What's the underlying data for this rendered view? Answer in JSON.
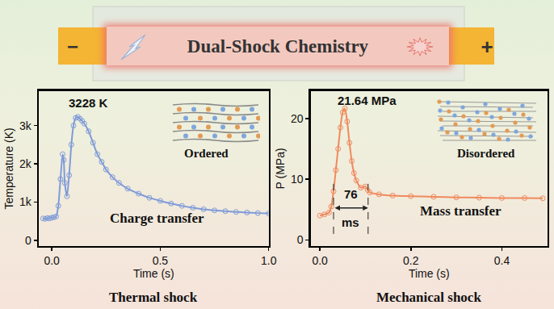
{
  "banner": {
    "title": "Dual-Shock Chemistry",
    "left": "−",
    "right": "+"
  },
  "chart_data": [
    {
      "type": "line",
      "title": "Thermal shock",
      "x_label": "Time (s)",
      "y_label": "Temperature (K)",
      "x": [
        -0.04,
        -0.03,
        -0.02,
        -0.01,
        0.0,
        0.01,
        0.02,
        0.03,
        0.04,
        0.05,
        0.055,
        0.06,
        0.07,
        0.08,
        0.09,
        0.1,
        0.11,
        0.12,
        0.13,
        0.14,
        0.15,
        0.17,
        0.19,
        0.21,
        0.23,
        0.25,
        0.28,
        0.31,
        0.35,
        0.4,
        0.45,
        0.5,
        0.55,
        0.6,
        0.65,
        0.7,
        0.75,
        0.8,
        0.85,
        0.9,
        0.95,
        1.0
      ],
      "values": [
        570,
        560,
        580,
        570,
        590,
        600,
        620,
        900,
        1600,
        2250,
        2100,
        1500,
        1150,
        1700,
        2500,
        3000,
        3200,
        3228,
        3180,
        3120,
        3050,
        2850,
        2550,
        2250,
        2050,
        1850,
        1650,
        1500,
        1350,
        1220,
        1110,
        1030,
        960,
        900,
        850,
        810,
        780,
        760,
        740,
        725,
        710,
        700
      ],
      "color": "#7f9bd8",
      "marker": "circle-open",
      "line_style": "solid",
      "grid": false,
      "xlim": [
        -0.06,
        1.0
      ],
      "xticks": [
        {
          "value": 0,
          "label": "0.0"
        },
        0.5,
        {
          "value": 1,
          "label": "1.0"
        }
      ],
      "ylim": [
        -150,
        3900
      ],
      "yticks": [
        0,
        {
          "value": 1000,
          "label": "1k"
        },
        {
          "value": 2000,
          "label": "2k"
        },
        {
          "value": 3000,
          "label": "3k"
        }
      ],
      "annotations": [
        {
          "text": "3228 K"
        },
        {
          "text": "Ordered"
        },
        {
          "text": "Charge transfer"
        }
      ]
    },
    {
      "type": "line",
      "title": "Mechanical shock",
      "x_label": "Time (s)",
      "y_label": "P (MPa)",
      "x": [
        0.0,
        0.01,
        0.02,
        0.025,
        0.03,
        0.035,
        0.04,
        0.045,
        0.05,
        0.055,
        0.06,
        0.065,
        0.07,
        0.075,
        0.08,
        0.09,
        0.1,
        0.105,
        0.11,
        0.13,
        0.16,
        0.2,
        0.25,
        0.3,
        0.35,
        0.4,
        0.45,
        0.49
      ],
      "values": [
        4.0,
        4.2,
        4.5,
        5.5,
        8.0,
        11.5,
        15.0,
        18.5,
        21.0,
        21.64,
        19.5,
        16.0,
        13.0,
        11.0,
        9.8,
        8.6,
        8.8,
        8.2,
        7.8,
        7.5,
        7.3,
        7.2,
        7.1,
        7.0,
        6.95,
        6.9,
        6.9,
        6.85
      ],
      "color": "#f08a5d",
      "marker": "circle-open",
      "line_style": "solid",
      "grid": false,
      "xlim": [
        -0.02,
        0.5
      ],
      "xticks": [
        {
          "value": 0,
          "label": "0.0"
        },
        0.2,
        0.4
      ],
      "ylim": [
        -1,
        24.5
      ],
      "yticks": [
        0,
        10,
        20
      ],
      "interval": {
        "x": [
          0.03,
          0.106
        ],
        "labels": [
          "76",
          "ms"
        ]
      },
      "annotations": [
        {
          "text": "21.64 MPa"
        },
        {
          "text": "Disordered"
        },
        {
          "text": "Mass transfer"
        }
      ]
    }
  ]
}
